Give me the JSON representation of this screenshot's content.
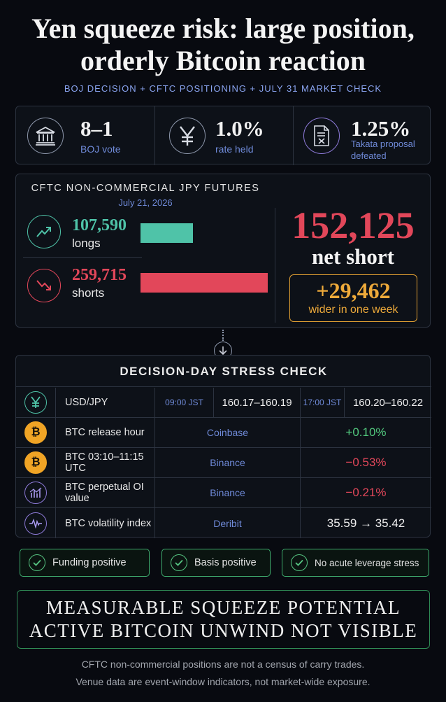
{
  "header": {
    "title_line1": "Yen squeeze risk: large position,",
    "title_line2": "orderly Bitcoin reaction",
    "subtitle": "BOJ DECISION + CFTC POSITIONING + JULY 31 MARKET CHECK"
  },
  "stats": [
    {
      "icon": "bank-icon",
      "value": "8–1",
      "label": "BOJ vote"
    },
    {
      "icon": "yen-icon",
      "value": "1.0%",
      "label": "rate held"
    },
    {
      "icon": "document-icon",
      "value": "1.25%",
      "label_line1": "Takata proposal",
      "label_line2": "defeated"
    }
  ],
  "cftc": {
    "title": "CFTC NON-COMMERCIAL JPY FUTURES",
    "date": "July 21, 2026",
    "longs": {
      "value": 107590,
      "display": "107,590",
      "label": "longs",
      "color": "#4fc3a8"
    },
    "shorts": {
      "value": 259715,
      "display": "259,715",
      "label": "shorts",
      "color": "#e2475a"
    },
    "net_value": "152,125",
    "net_label": "net short",
    "change_value": "+29,462",
    "change_label": "wider in one week"
  },
  "stress": {
    "title": "DECISION-DAY STRESS CHECK",
    "usdjpy": {
      "label": "USD/JPY",
      "time1": "09:00 JST",
      "value1": "160.17–160.19",
      "time2": "17:00 JST",
      "value2": "160.20–160.22"
    },
    "rows": [
      {
        "icon": "bitcoin-icon",
        "label": "BTC release hour",
        "venue": "Coinbase",
        "result": "+0.10%",
        "result_color": "#52c97e"
      },
      {
        "icon": "bitcoin-icon",
        "label": "BTC 03:10–11:15 UTC",
        "venue": "Binance",
        "result": "−0.53%",
        "result_color": "#e2475a"
      },
      {
        "icon": "bar-chart-icon",
        "label": "BTC perpetual OI value",
        "venue": "Binance",
        "result": "−0.21%",
        "result_color": "#e2475a"
      },
      {
        "icon": "waveform-icon",
        "label": "BTC volatility index",
        "venue": "Deribit",
        "result": "35.59 → 35.42",
        "result_color": "#eeeeee"
      }
    ]
  },
  "checks": [
    {
      "label": "Funding positive"
    },
    {
      "label": "Basis positive"
    },
    {
      "label": "No acute leverage stress"
    }
  ],
  "verdict": {
    "line1": "MEASURABLE SQUEEZE POTENTIAL",
    "line2": "ACTIVE BITCOIN UNWIND NOT VISIBLE"
  },
  "footer": {
    "line1": "CFTC non-commercial positions are not a census of carry trades.",
    "line2": "Venue data are event-window indicators, not market-wide exposure."
  },
  "colors": {
    "accent_blue": "#6f8ad8",
    "green": "#3fae6e",
    "red": "#e2475a",
    "teal": "#4fc3a8",
    "amber": "#e2a032",
    "bitcoin_orange": "#f0a425"
  }
}
